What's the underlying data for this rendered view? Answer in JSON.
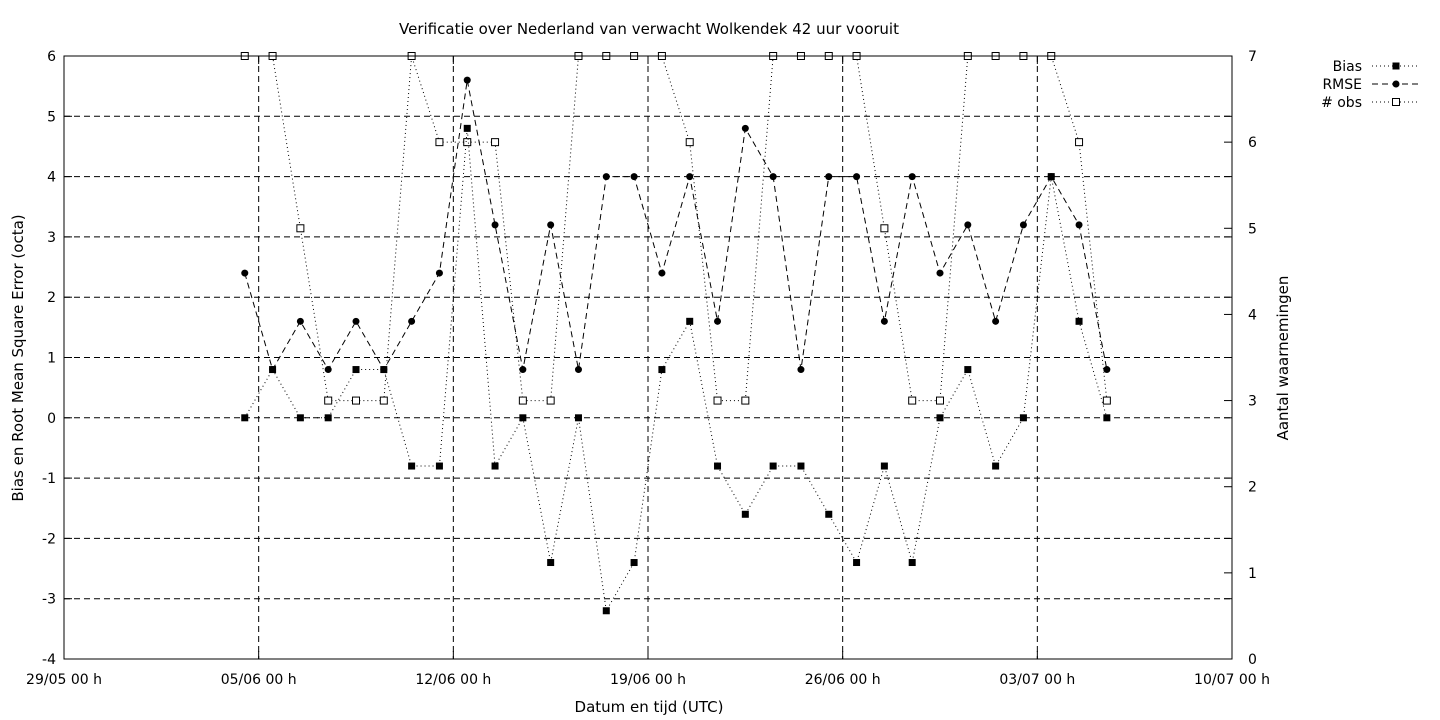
{
  "chart_data": {
    "type": "line",
    "title": "Verificatie over Nederland van verwacht Wolkendek 42 uur vooruit",
    "xlabel": "Datum en tijd (UTC)",
    "ylabel": "Bias en Root Mean Square Error (octa)",
    "y2label": "Aantal waarnemingen",
    "xlim": [
      "2023-05-29",
      "2023-07-10"
    ],
    "ylim": [
      -4,
      6
    ],
    "y2lim": [
      0,
      7
    ],
    "x_ticks": [
      {
        "date": "2023-05-29",
        "label": "29/05 00 h"
      },
      {
        "date": "2023-06-05",
        "label": "05/06 00 h"
      },
      {
        "date": "2023-06-12",
        "label": "12/06 00 h"
      },
      {
        "date": "2023-06-19",
        "label": "19/06 00 h"
      },
      {
        "date": "2023-06-26",
        "label": "26/06 00 h"
      },
      {
        "date": "2023-07-03",
        "label": "03/07 00 h"
      },
      {
        "date": "2023-07-10",
        "label": "10/07 00 h"
      }
    ],
    "y_ticks": [
      "-4",
      "-3",
      "-2",
      "-1",
      "0",
      "1",
      "2",
      "3",
      "4",
      "5",
      "6"
    ],
    "y2_ticks": [
      "0",
      "1",
      "2",
      "3",
      "4",
      "5",
      "6",
      "7"
    ],
    "grid": true,
    "legend_position": "top-right",
    "x": [
      "2023-06-04T12:00",
      "2023-06-05T12:00",
      "2023-06-06T12:00",
      "2023-06-07T12:00",
      "2023-06-08T12:00",
      "2023-06-09T12:00",
      "2023-06-10T12:00",
      "2023-06-11T12:00",
      "2023-06-12T12:00",
      "2023-06-13T12:00",
      "2023-06-14T12:00",
      "2023-06-15T12:00",
      "2023-06-16T12:00",
      "2023-06-17T12:00",
      "2023-06-18T12:00",
      "2023-06-19T12:00",
      "2023-06-20T12:00",
      "2023-06-21T12:00",
      "2023-06-22T12:00",
      "2023-06-23T12:00",
      "2023-06-24T12:00",
      "2023-06-25T12:00",
      "2023-06-26T12:00",
      "2023-06-27T12:00",
      "2023-06-28T12:00",
      "2023-06-29T12:00",
      "2023-06-30T12:00",
      "2023-07-01T12:00",
      "2023-07-02T12:00",
      "2023-07-03T12:00",
      "2023-07-04T12:00",
      "2023-07-05T12:00"
    ],
    "series": [
      {
        "name": "Bias",
        "axis": "left",
        "line": "dotted",
        "marker": "filled-square",
        "values": [
          0,
          0.8,
          0,
          0,
          0.8,
          0.8,
          -0.8,
          -0.8,
          4.8,
          -0.8,
          0,
          -2.4,
          0,
          -3.2,
          -2.4,
          0.8,
          1.6,
          -0.8,
          -1.6,
          -0.8,
          -0.8,
          -1.6,
          -2.4,
          -0.8,
          -2.4,
          0,
          0.8,
          -0.8,
          0,
          4,
          1.6,
          0
        ]
      },
      {
        "name": "RMSE",
        "axis": "left",
        "line": "dashed",
        "marker": "filled-circle",
        "values": [
          2.4,
          0.8,
          1.6,
          0.8,
          1.6,
          0.8,
          1.6,
          2.4,
          5.6,
          3.2,
          0.8,
          3.2,
          0.8,
          4,
          4,
          2.4,
          4,
          1.6,
          4.8,
          4,
          0.8,
          4,
          4,
          1.6,
          4,
          2.4,
          3.2,
          1.6,
          3.2,
          4,
          3.2,
          0.8
        ]
      },
      {
        "name": "# obs",
        "axis": "right",
        "line": "dotted",
        "marker": "open-square",
        "values": [
          7,
          7,
          5,
          3,
          3,
          3,
          7,
          6,
          6,
          6,
          3,
          3,
          7,
          7,
          7,
          7,
          6,
          3,
          3,
          7,
          7,
          7,
          7,
          5,
          3,
          3,
          7,
          7,
          7,
          7,
          6,
          3
        ]
      }
    ]
  }
}
